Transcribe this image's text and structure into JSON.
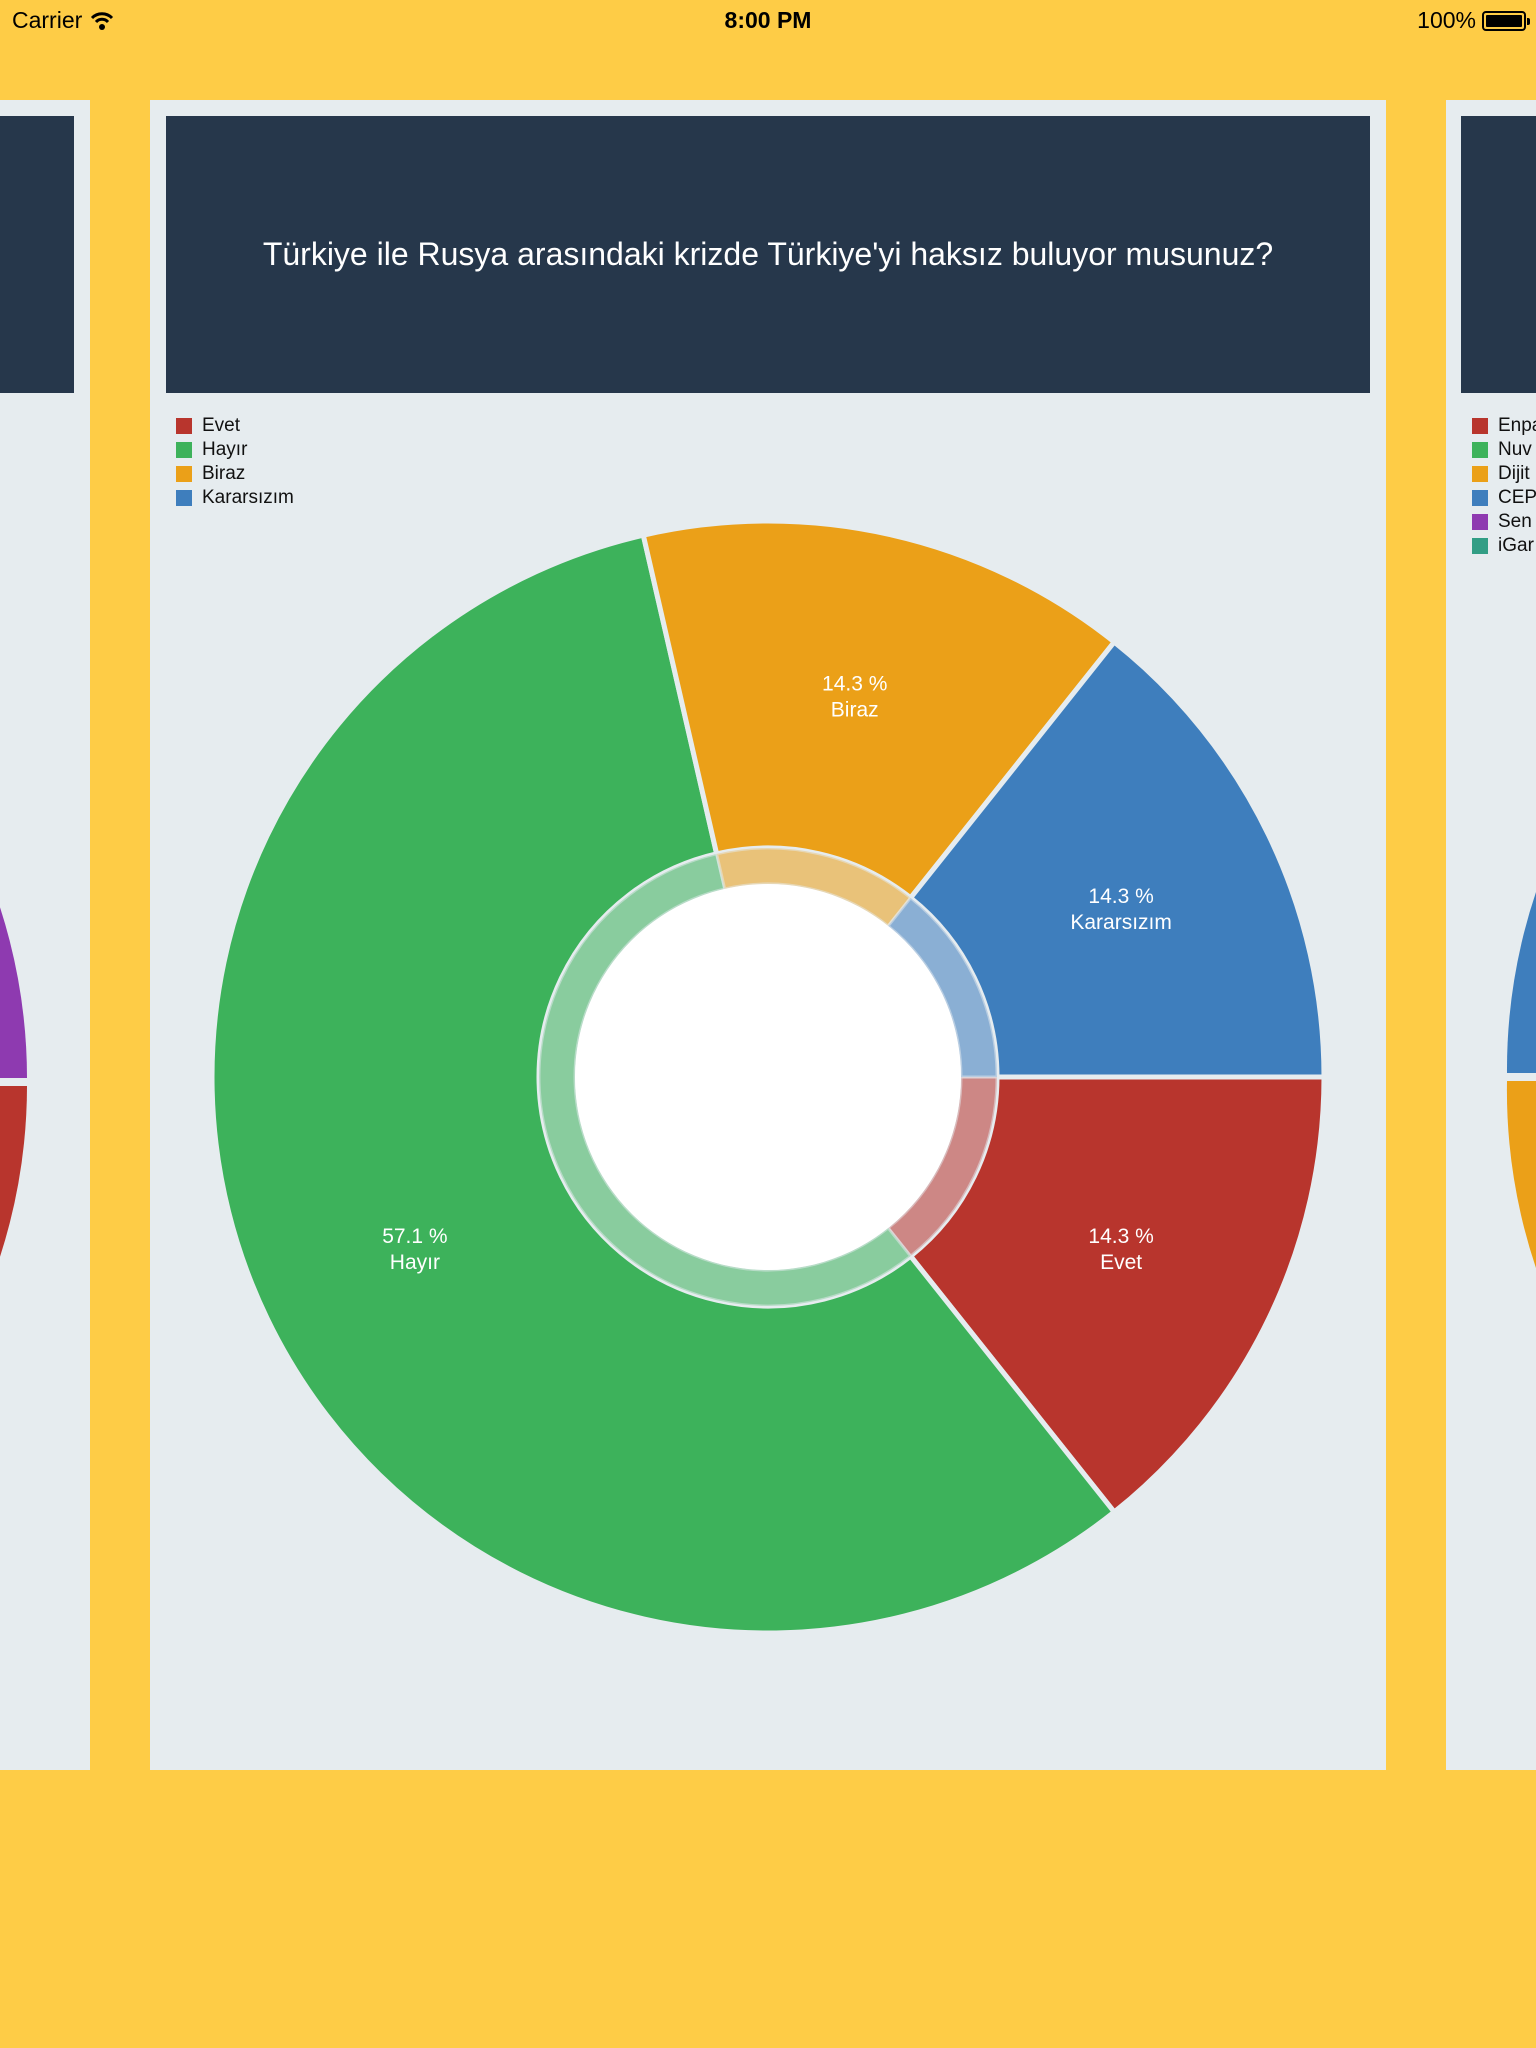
{
  "status_bar": {
    "carrier": "Carrier",
    "time": "8:00 PM",
    "battery": "100%"
  },
  "colors": {
    "background": "#FECC46",
    "card": "#E6ECEF",
    "header": "#26374B"
  },
  "chart_data": {
    "type": "pie",
    "title": "Türkiye ile Rusya arasındaki krizde Türkiye'yi haksız buluyor musunuz?",
    "legend_position": "top-left",
    "categories": [
      "Evet",
      "Hayır",
      "Biraz",
      "Kararsızım"
    ],
    "values": [
      14.3,
      57.1,
      14.3,
      14.3
    ],
    "value_labels": [
      "14.3 %",
      "57.1 %",
      "14.3 %",
      "14.3 %"
    ],
    "colors": [
      "#B8352D",
      "#3DB25B",
      "#EBA018",
      "#3E7EBD"
    ],
    "donut": true
  },
  "side_cards": {
    "right_legend": [
      {
        "label": "Enpa",
        "color": "#B8352D"
      },
      {
        "label": "Nuv",
        "color": "#3DB25B"
      },
      {
        "label": "Dijit",
        "color": "#EBA018"
      },
      {
        "label": "CEP",
        "color": "#3E7EBD"
      },
      {
        "label": "Sen",
        "color": "#8E3AB0"
      },
      {
        "label": "iGar",
        "color": "#329E85"
      }
    ]
  }
}
